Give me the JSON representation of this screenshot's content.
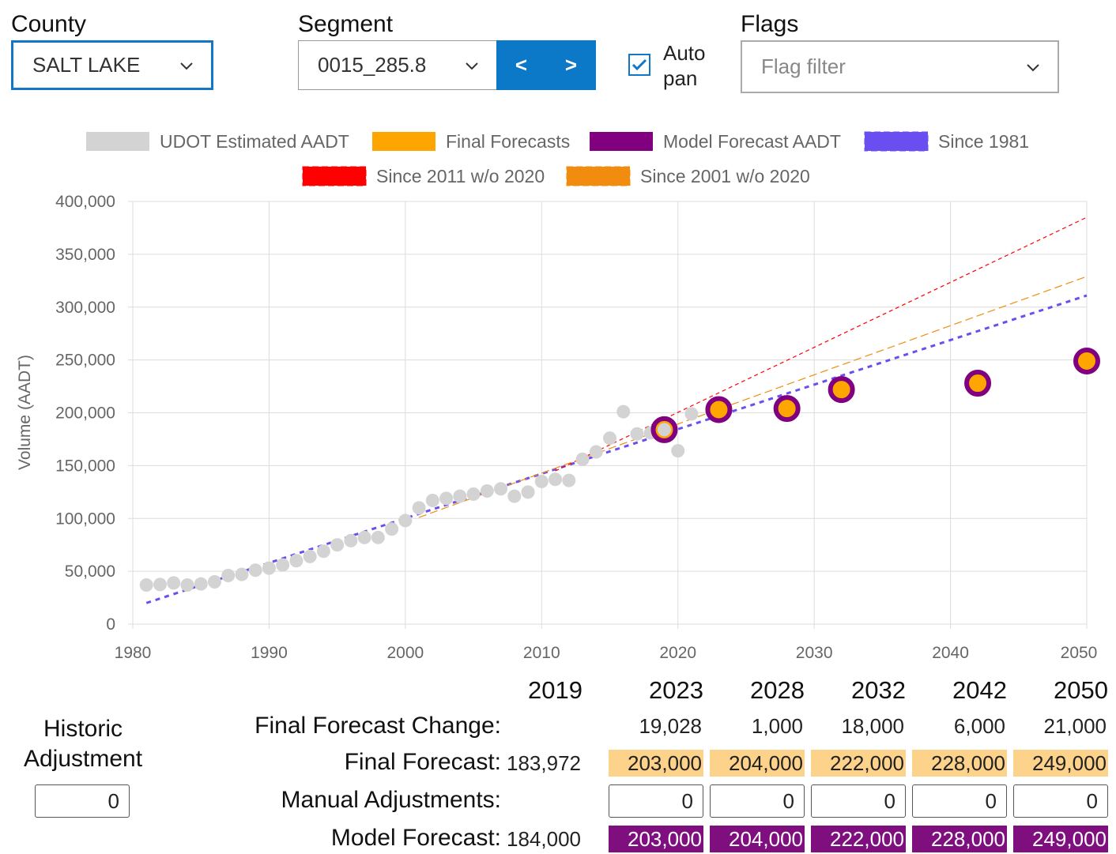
{
  "controls": {
    "county": {
      "label": "County",
      "value": "SALT LAKE"
    },
    "segment": {
      "label": "Segment",
      "value": "0015_285.8",
      "prev_label": "<",
      "next_label": ">"
    },
    "autopan": {
      "label_line1": "Auto",
      "label_line2": "pan",
      "checked": true
    },
    "flags": {
      "label": "Flags",
      "placeholder": "Flag filter"
    }
  },
  "chart_data": {
    "type": "scatter",
    "ylabel": "Volume (AADT)",
    "xlabel": "",
    "xlim": [
      1980,
      2050
    ],
    "ylim": [
      0,
      400000
    ],
    "x_ticks": [
      1980,
      1990,
      2000,
      2010,
      2020,
      2030,
      2040,
      2050
    ],
    "y_ticks": [
      0,
      50000,
      100000,
      150000,
      200000,
      250000,
      300000,
      350000,
      400000
    ],
    "y_tick_labels": [
      "0",
      "50,000",
      "100,000",
      "150,000",
      "200,000",
      "250,000",
      "300,000",
      "350,000",
      "400,000"
    ],
    "grid": true,
    "legend_position": "top",
    "series": [
      {
        "name": "UDOT Estimated AADT",
        "kind": "points",
        "color": "#d3d3d3",
        "x": [
          1981,
          1982,
          1983,
          1984,
          1985,
          1986,
          1987,
          1988,
          1989,
          1990,
          1991,
          1992,
          1993,
          1994,
          1995,
          1996,
          1997,
          1998,
          1999,
          2000,
          2001,
          2002,
          2003,
          2004,
          2005,
          2006,
          2007,
          2008,
          2009,
          2010,
          2011,
          2012,
          2013,
          2014,
          2015,
          2016,
          2017,
          2018,
          2019,
          2020,
          2021
        ],
        "y": [
          37000,
          37500,
          39000,
          37000,
          38000,
          40000,
          46000,
          47000,
          51000,
          53000,
          56000,
          60000,
          64000,
          69000,
          75000,
          79000,
          82000,
          82000,
          90000,
          98000,
          110000,
          117000,
          119000,
          121000,
          123000,
          126000,
          128000,
          121000,
          125000,
          135000,
          137000,
          136000,
          156000,
          163000,
          176000,
          201000,
          180000,
          181000,
          184000,
          164000,
          199000
        ]
      },
      {
        "name": "Final Forecasts",
        "kind": "points",
        "color": "#ffa500",
        "border": "#800080",
        "x": [
          2019,
          2023,
          2028,
          2032,
          2042,
          2050
        ],
        "y": [
          183972,
          203000,
          204000,
          222000,
          228000,
          249000
        ]
      },
      {
        "name": "Model Forecast AADT",
        "kind": "legend-only",
        "color": "#800080"
      },
      {
        "name": "Since 1981",
        "kind": "trend",
        "color": "#6a4ef0",
        "dash": "6,6",
        "width": 3,
        "x": [
          1981,
          2050
        ],
        "y": [
          20000,
          311000
        ]
      },
      {
        "name": "Since 2011 w/o 2020",
        "kind": "trend",
        "color": "#ff0000",
        "dash": "5,4",
        "width": 1.2,
        "x": [
          2011,
          2050
        ],
        "y": [
          145000,
          385000
        ]
      },
      {
        "name": "Since 2001 w/o 2020",
        "kind": "trend",
        "color": "#f28c0f",
        "dash": "10,5",
        "width": 1.2,
        "x": [
          2001,
          2050
        ],
        "y": [
          101000,
          329000
        ]
      }
    ]
  },
  "table": {
    "years": [
      "2019",
      "2023",
      "2028",
      "2032",
      "2042",
      "2050"
    ],
    "rows": {
      "change": {
        "label": "Final Forecast Change:",
        "values": [
          "",
          "19,028",
          "1,000",
          "18,000",
          "6,000",
          "21,000"
        ]
      },
      "final": {
        "label": "Final Forecast:",
        "values": [
          "183,972",
          "203,000",
          "204,000",
          "222,000",
          "228,000",
          "249,000"
        ]
      },
      "manual": {
        "label": "Manual Adjustments:",
        "values": [
          "0",
          "0",
          "0",
          "0",
          "0"
        ]
      },
      "model": {
        "label": "Model Forecast:",
        "values": [
          "184,000",
          "203,000",
          "204,000",
          "222,000",
          "228,000",
          "249,000"
        ]
      }
    }
  },
  "historic_adjustment": {
    "label_line1": "Historic",
    "label_line2": "Adjustment",
    "value": "0"
  }
}
